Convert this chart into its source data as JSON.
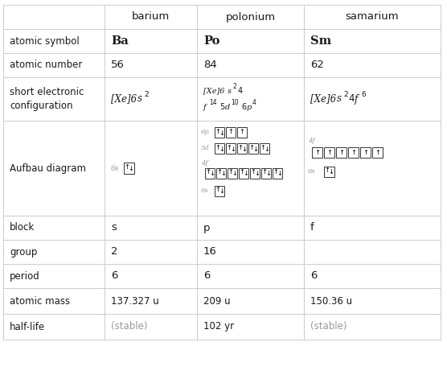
{
  "columns": [
    "barium",
    "polonium",
    "samarium"
  ],
  "row_labels": [
    "atomic symbol",
    "atomic number",
    "short electronic\nconfiguration",
    "Aufbau diagram",
    "block",
    "group",
    "period",
    "atomic mass",
    "half-life"
  ],
  "border_color": "#cccccc",
  "text_color": "#1a1a1a",
  "gray_color": "#999999",
  "symbol_data": [
    "Ba",
    "Po",
    "Sm"
  ],
  "number_data": [
    "56",
    "84",
    "62"
  ],
  "block_data": [
    "s",
    "p",
    "f"
  ],
  "group_data": [
    "2",
    "16",
    ""
  ],
  "period_data": [
    "6",
    "6",
    "6"
  ],
  "mass_data": [
    "137.327 u",
    "209 u",
    "150.36 u"
  ],
  "halflife_data": [
    "(stable)",
    "102 yr",
    "(stable)"
  ]
}
